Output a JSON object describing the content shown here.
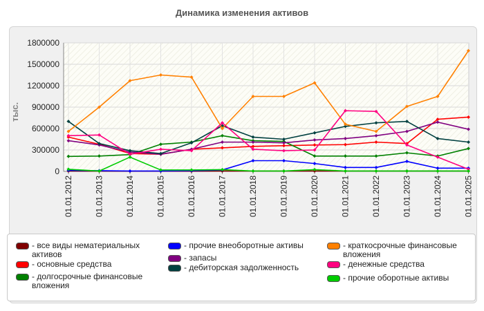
{
  "chart_data": {
    "type": "line",
    "title": "Динамика изменения активов",
    "ylabel": "тыс.",
    "xlabel": "",
    "ylim": [
      0,
      1800000
    ],
    "yticks": [
      0,
      300000,
      600000,
      900000,
      1200000,
      1500000,
      1800000
    ],
    "categories": [
      "01.01.2012",
      "01.01.2013",
      "01.01.2014",
      "01.01.2015",
      "01.01.2016",
      "01.01.2017",
      "01.01.2018",
      "01.01.2019",
      "01.01.2020",
      "01.01.2021",
      "01.01.2022",
      "01.01.2023",
      "01.01.2024",
      "01.01.2025"
    ],
    "grid": true,
    "legend_position": "bottom",
    "series": [
      {
        "name": "все виды нематериальных активов",
        "color": "#800000",
        "values": [
          5000,
          4000,
          3000,
          3000,
          3000,
          5000,
          5000,
          5000,
          5000,
          5000,
          5000,
          5000,
          5000,
          5000
        ]
      },
      {
        "name": "основные средства",
        "color": "#ff0000",
        "values": [
          480000,
          380000,
          250000,
          240000,
          310000,
          330000,
          350000,
          360000,
          370000,
          375000,
          410000,
          390000,
          730000,
          760000
        ]
      },
      {
        "name": "долгосрочные финансовые вложения",
        "color": "#008000",
        "values": [
          210000,
          215000,
          235000,
          380000,
          410000,
          500000,
          430000,
          420000,
          215000,
          215000,
          215000,
          260000,
          215000,
          320000
        ]
      },
      {
        "name": "прочие внеоборотные активы",
        "color": "#0000ff",
        "values": [
          15000,
          10000,
          5000,
          5000,
          10000,
          20000,
          150000,
          150000,
          110000,
          55000,
          55000,
          140000,
          45000,
          45000
        ]
      },
      {
        "name": "запасы",
        "color": "#800080",
        "values": [
          430000,
          370000,
          270000,
          240000,
          310000,
          410000,
          410000,
          400000,
          440000,
          460000,
          500000,
          560000,
          690000,
          590000
        ]
      },
      {
        "name": "дебиторская задолженность",
        "color": "#004040",
        "values": [
          700000,
          390000,
          290000,
          250000,
          400000,
          640000,
          480000,
          450000,
          540000,
          630000,
          680000,
          700000,
          460000,
          410000
        ]
      },
      {
        "name": "краткосрочные финансовые вложения",
        "color": "#ff8000",
        "values": [
          560000,
          900000,
          1270000,
          1350000,
          1320000,
          600000,
          1050000,
          1050000,
          1240000,
          660000,
          560000,
          910000,
          1050000,
          1690000
        ]
      },
      {
        "name": "денежные средства",
        "color": "#ff0080",
        "values": [
          500000,
          510000,
          240000,
          310000,
          290000,
          680000,
          310000,
          290000,
          300000,
          850000,
          840000,
          370000,
          200000,
          30000
        ]
      },
      {
        "name": "прочие оборотные активы",
        "color": "#00cc00",
        "values": [
          30000,
          5000,
          200000,
          20000,
          20000,
          25000,
          5000,
          5000,
          25000,
          5000,
          5000,
          5000,
          5000,
          5000
        ]
      }
    ]
  }
}
